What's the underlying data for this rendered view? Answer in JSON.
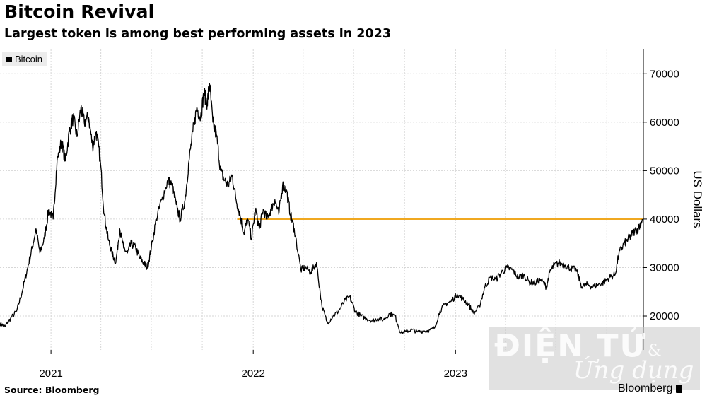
{
  "title": "Bitcoin Revival",
  "subtitle": "Largest token is among best performing assets in 2023",
  "source": "Source: Bloomberg",
  "brand": "Bloomberg",
  "watermark": {
    "top": "ĐIỆN TỬ",
    "amp": "&",
    "bottom": "Ứng dụng"
  },
  "colors": {
    "series": "#000000",
    "reference_line": "#f0a820",
    "grid": "#d6d6d6"
  },
  "chart_data": {
    "type": "line",
    "title": "Bitcoin Revival",
    "subtitle": "Largest token is among best performing assets in 2023",
    "ylabel": "US Dollars",
    "ylim": [
      13000,
      75000
    ],
    "yticks": [
      20000,
      30000,
      40000,
      50000,
      60000,
      70000
    ],
    "ytick_labels": [
      "20000",
      "30000",
      "40000",
      "50000",
      "60000",
      "70000"
    ],
    "xlim": [
      "2020-10-01",
      "2023-12-06"
    ],
    "xtick_labels": [
      "2021",
      "2022",
      "2023"
    ],
    "xtick_dates": [
      "2021-01-01",
      "2022-01-01",
      "2023-01-01"
    ],
    "legend": {
      "entries": [
        "Bitcoin"
      ],
      "position": "top-left"
    },
    "grid": true,
    "reference_line": {
      "y": 40000,
      "from": "2021-12-03",
      "to": "2023-12-06"
    },
    "series": [
      {
        "name": "Bitcoin",
        "points": [
          [
            "2020-10-01",
            18500
          ],
          [
            "2020-10-10",
            17800
          ],
          [
            "2020-10-20",
            19500
          ],
          [
            "2020-10-31",
            21000
          ],
          [
            "2020-11-10",
            25000
          ],
          [
            "2020-11-20",
            30000
          ],
          [
            "2020-11-28",
            34000
          ],
          [
            "2020-12-05",
            38000
          ],
          [
            "2020-12-12",
            33000
          ],
          [
            "2020-12-20",
            36000
          ],
          [
            "2020-12-28",
            42000
          ],
          [
            "2021-01-05",
            40000
          ],
          [
            "2021-01-12",
            52000
          ],
          [
            "2021-01-20",
            56000
          ],
          [
            "2021-01-27",
            52000
          ],
          [
            "2021-02-03",
            58000
          ],
          [
            "2021-02-10",
            61000
          ],
          [
            "2021-02-17",
            57000
          ],
          [
            "2021-02-24",
            63000
          ],
          [
            "2021-03-02",
            60000
          ],
          [
            "2021-03-10",
            61000
          ],
          [
            "2021-03-17",
            55000
          ],
          [
            "2021-03-24",
            58000
          ],
          [
            "2021-03-31",
            52000
          ],
          [
            "2021-04-07",
            41000
          ],
          [
            "2021-04-14",
            36000
          ],
          [
            "2021-04-21",
            33000
          ],
          [
            "2021-04-28",
            31000
          ],
          [
            "2021-05-05",
            38000
          ],
          [
            "2021-05-12",
            34000
          ],
          [
            "2021-05-19",
            33000
          ],
          [
            "2021-05-26",
            35000
          ],
          [
            "2021-06-03",
            34000
          ],
          [
            "2021-06-10",
            32000
          ],
          [
            "2021-06-17",
            31000
          ],
          [
            "2021-06-24",
            30000
          ],
          [
            "2021-07-01",
            34000
          ],
          [
            "2021-07-10",
            40000
          ],
          [
            "2021-07-20",
            44000
          ],
          [
            "2021-07-31",
            48000
          ],
          [
            "2021-08-07",
            47000
          ],
          [
            "2021-08-15",
            43000
          ],
          [
            "2021-08-22",
            40000
          ],
          [
            "2021-08-31",
            44000
          ],
          [
            "2021-09-07",
            52000
          ],
          [
            "2021-09-14",
            58000
          ],
          [
            "2021-09-21",
            63000
          ],
          [
            "2021-09-28",
            61000
          ],
          [
            "2021-10-04",
            66000
          ],
          [
            "2021-10-10",
            64000
          ],
          [
            "2021-10-14",
            68000
          ],
          [
            "2021-10-20",
            60000
          ],
          [
            "2021-10-27",
            57000
          ],
          [
            "2021-11-03",
            50000
          ],
          [
            "2021-11-10",
            48000
          ],
          [
            "2021-11-17",
            47000
          ],
          [
            "2021-11-24",
            49000
          ],
          [
            "2021-12-01",
            44000
          ],
          [
            "2021-12-08",
            41000
          ],
          [
            "2021-12-15",
            37000
          ],
          [
            "2021-12-22",
            40000
          ],
          [
            "2021-12-29",
            36000
          ],
          [
            "2022-01-05",
            42000
          ],
          [
            "2022-01-12",
            38000
          ],
          [
            "2022-01-19",
            42000
          ],
          [
            "2022-01-26",
            40000
          ],
          [
            "2022-02-02",
            42000
          ],
          [
            "2022-02-09",
            44000
          ],
          [
            "2022-02-16",
            41000
          ],
          [
            "2022-02-23",
            47000
          ],
          [
            "2022-03-02",
            46000
          ],
          [
            "2022-03-09",
            41000
          ],
          [
            "2022-03-16",
            38000
          ],
          [
            "2022-03-28",
            29500
          ],
          [
            "2022-04-05",
            30000
          ],
          [
            "2022-04-15",
            29000
          ],
          [
            "2022-04-25",
            31000
          ],
          [
            "2022-05-05",
            22000
          ],
          [
            "2022-05-15",
            18500
          ],
          [
            "2022-05-25",
            20000
          ],
          [
            "2022-06-04",
            21000
          ],
          [
            "2022-06-14",
            23000
          ],
          [
            "2022-06-24",
            24000
          ],
          [
            "2022-07-04",
            21000
          ],
          [
            "2022-07-14",
            20000
          ],
          [
            "2022-07-24",
            19500
          ],
          [
            "2022-08-04",
            19000
          ],
          [
            "2022-08-14",
            19500
          ],
          [
            "2022-08-24",
            19200
          ],
          [
            "2022-09-04",
            20500
          ],
          [
            "2022-09-14",
            20000
          ],
          [
            "2022-09-24",
            16500
          ],
          [
            "2022-10-04",
            16800
          ],
          [
            "2022-10-14",
            17200
          ],
          [
            "2022-10-24",
            16700
          ],
          [
            "2022-11-04",
            16900
          ],
          [
            "2022-11-14",
            17000
          ],
          [
            "2022-11-24",
            17500
          ],
          [
            "2022-12-04",
            21000
          ],
          [
            "2022-12-14",
            22500
          ],
          [
            "2022-12-24",
            23000
          ],
          [
            "2023-01-04",
            24500
          ],
          [
            "2023-01-14",
            23500
          ],
          [
            "2023-01-24",
            22500
          ],
          [
            "2023-02-03",
            20500
          ],
          [
            "2023-02-13",
            22000
          ],
          [
            "2023-02-23",
            26000
          ],
          [
            "2023-03-05",
            28000
          ],
          [
            "2023-03-15",
            27500
          ],
          [
            "2023-03-25",
            29000
          ],
          [
            "2023-04-04",
            30000
          ],
          [
            "2023-04-14",
            29500
          ],
          [
            "2023-04-24",
            28000
          ],
          [
            "2023-05-04",
            28500
          ],
          [
            "2023-05-14",
            27000
          ],
          [
            "2023-05-24",
            26800
          ],
          [
            "2023-06-04",
            27500
          ],
          [
            "2023-06-14",
            26000
          ],
          [
            "2023-06-20",
            29000
          ],
          [
            "2023-06-28",
            30500
          ],
          [
            "2023-07-08",
            31000
          ],
          [
            "2023-07-18",
            30500
          ],
          [
            "2023-07-28",
            29800
          ],
          [
            "2023-08-07",
            29500
          ],
          [
            "2023-08-17",
            26000
          ],
          [
            "2023-08-27",
            26500
          ],
          [
            "2023-09-06",
            26000
          ],
          [
            "2023-09-16",
            26500
          ],
          [
            "2023-09-26",
            27000
          ],
          [
            "2023-10-06",
            28000
          ],
          [
            "2023-10-16",
            28500
          ],
          [
            "2023-10-23",
            33000
          ],
          [
            "2023-10-30",
            34500
          ],
          [
            "2023-11-06",
            35500
          ],
          [
            "2023-11-13",
            36500
          ],
          [
            "2023-11-20",
            37500
          ],
          [
            "2023-11-27",
            38000
          ],
          [
            "2023-12-04",
            40000
          ]
        ]
      }
    ]
  }
}
